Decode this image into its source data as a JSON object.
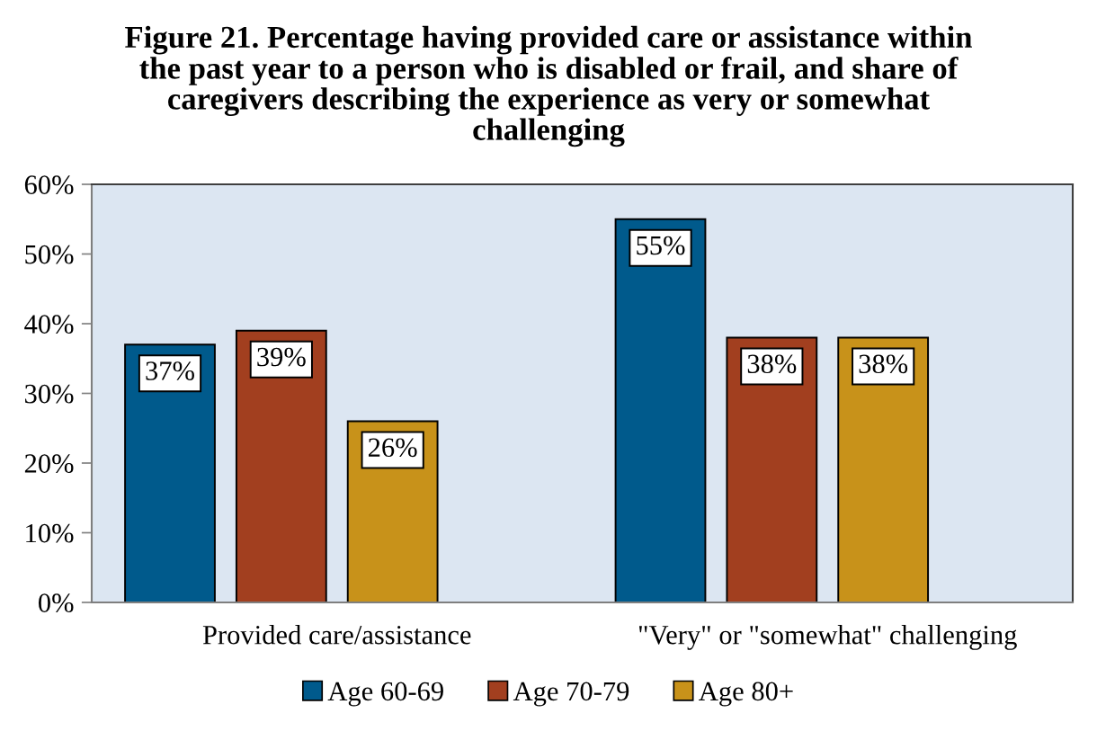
{
  "chart_data": {
    "type": "bar",
    "title": "Figure 21. Percentage having provided care or assistance within\nthe past year to a person who is disabled or frail, and share of\ncaregivers describing the experience as very or somewhat\nchallenging",
    "categories": [
      "Provided care/assistance",
      "\"Very\" or \"somewhat\" challenging"
    ],
    "series": [
      {
        "name": "Age 60-69",
        "color": "#005a8c",
        "values": [
          37,
          55
        ],
        "value_labels": [
          "37%",
          "55%"
        ]
      },
      {
        "name": "Age 70-79",
        "color": "#a23f1f",
        "values": [
          39,
          38
        ],
        "value_labels": [
          "39%",
          "38%"
        ]
      },
      {
        "name": "Age 80+",
        "color": "#c8921a",
        "values": [
          26,
          38
        ],
        "value_labels": [
          "26%",
          "38%"
        ]
      }
    ],
    "ylim": [
      0,
      60
    ],
    "yticks": [
      {
        "value": 0,
        "label": "0%"
      },
      {
        "value": 10,
        "label": "10%"
      },
      {
        "value": 20,
        "label": "20%"
      },
      {
        "value": 30,
        "label": "30%"
      },
      {
        "value": 40,
        "label": "40%"
      },
      {
        "value": 50,
        "label": "50%"
      },
      {
        "value": 60,
        "label": "60%"
      }
    ],
    "grid": false,
    "legend": "bottom"
  }
}
